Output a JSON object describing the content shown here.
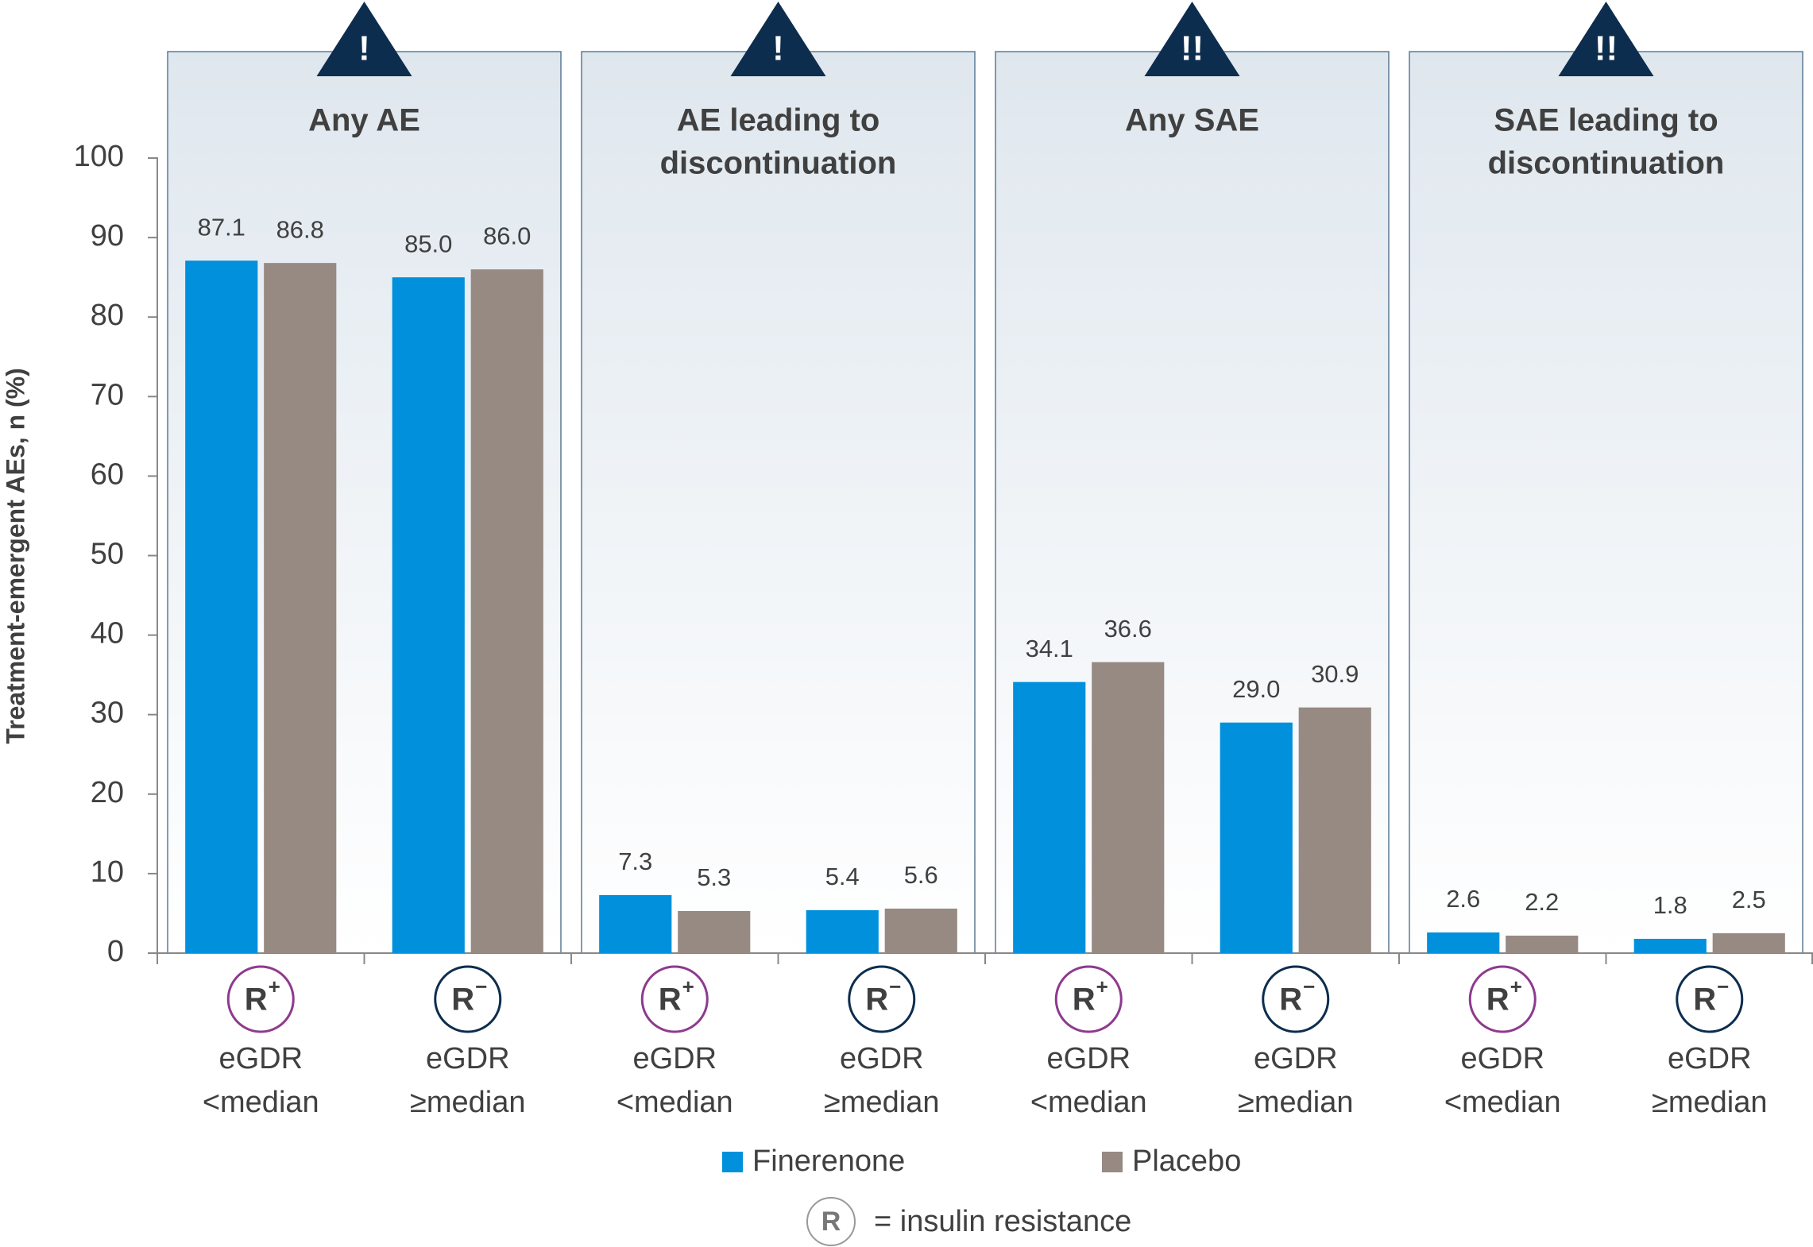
{
  "chart_data": {
    "type": "bar",
    "y_label": "Treatment-emergent AEs, n (%)",
    "ylim": [
      0,
      100
    ],
    "yticks": [
      0,
      10,
      20,
      30,
      40,
      50,
      60,
      70,
      80,
      90,
      100
    ],
    "panels": [
      {
        "title": [
          "Any AE"
        ],
        "alert": "!"
      },
      {
        "title": [
          "AE leading to",
          "discontinuation"
        ],
        "alert": "!"
      },
      {
        "title": [
          "Any SAE"
        ],
        "alert": "!!"
      },
      {
        "title": [
          "SAE leading to",
          "discontinuation"
        ],
        "alert": "!!"
      }
    ],
    "categories": [
      [
        "eGDR",
        "<median"
      ],
      [
        "eGDR",
        "≥median"
      ],
      [
        "eGDR",
        "<median"
      ],
      [
        "eGDR",
        "≥median"
      ],
      [
        "eGDR",
        "<median"
      ],
      [
        "eGDR",
        "≥median"
      ],
      [
        "eGDR",
        "<median"
      ],
      [
        "eGDR",
        "≥median"
      ]
    ],
    "category_icons": [
      {
        "letter": "R",
        "sign": "+",
        "color": "#8e3a8e"
      },
      {
        "letter": "R",
        "sign": "−",
        "color": "#0d2d4e"
      },
      {
        "letter": "R",
        "sign": "+",
        "color": "#8e3a8e"
      },
      {
        "letter": "R",
        "sign": "−",
        "color": "#0d2d4e"
      },
      {
        "letter": "R",
        "sign": "+",
        "color": "#8e3a8e"
      },
      {
        "letter": "R",
        "sign": "−",
        "color": "#0d2d4e"
      },
      {
        "letter": "R",
        "sign": "+",
        "color": "#8e3a8e"
      },
      {
        "letter": "R",
        "sign": "−",
        "color": "#0d2d4e"
      }
    ],
    "series": [
      {
        "name": "Finerenone",
        "color": "#0090dc",
        "values": [
          87.1,
          85.0,
          7.3,
          5.4,
          34.1,
          29.0,
          2.6,
          1.8
        ],
        "value_labels": [
          "87.1",
          "85.0",
          "7.3",
          "5.4",
          "34.1",
          "29.0",
          "2.6",
          "1.8"
        ]
      },
      {
        "name": "Placebo",
        "color": "#978a82",
        "values": [
          86.8,
          86.0,
          5.3,
          5.6,
          36.6,
          30.9,
          2.2,
          2.5
        ],
        "value_labels": [
          "86.8",
          "86.0",
          "5.3",
          "5.6",
          "36.6",
          "30.9",
          "2.2",
          "2.5"
        ]
      }
    ],
    "note": {
      "symbol": "R",
      "text": "= insulin resistance"
    }
  }
}
